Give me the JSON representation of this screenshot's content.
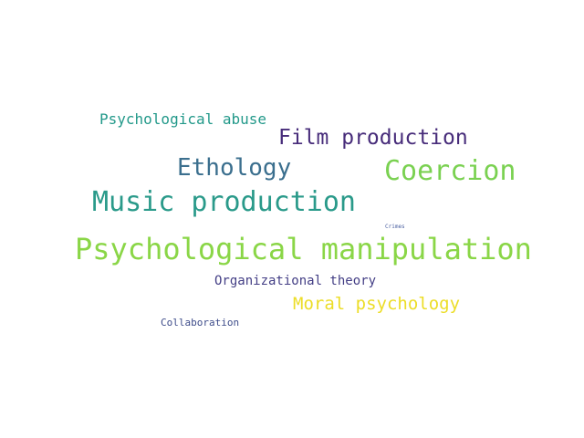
{
  "word_cloud": {
    "words": [
      {
        "text": "Psychological abuse",
        "color": "#23998a"
      },
      {
        "text": "Film production",
        "color": "#472c7a"
      },
      {
        "text": "Ethology",
        "color": "#3b6f8e"
      },
      {
        "text": "Coercion",
        "color": "#7ad151"
      },
      {
        "text": "Music production",
        "color": "#2a9a8a"
      },
      {
        "text": "Crimes",
        "color": "#4a5fa0"
      },
      {
        "text": "Psychological manipulation",
        "color": "#8ad647"
      },
      {
        "text": "Organizational theory",
        "color": "#433e85"
      },
      {
        "text": "Moral psychology",
        "color": "#ecdd27"
      },
      {
        "text": "Collaboration",
        "color": "#3e4c8a"
      }
    ]
  }
}
